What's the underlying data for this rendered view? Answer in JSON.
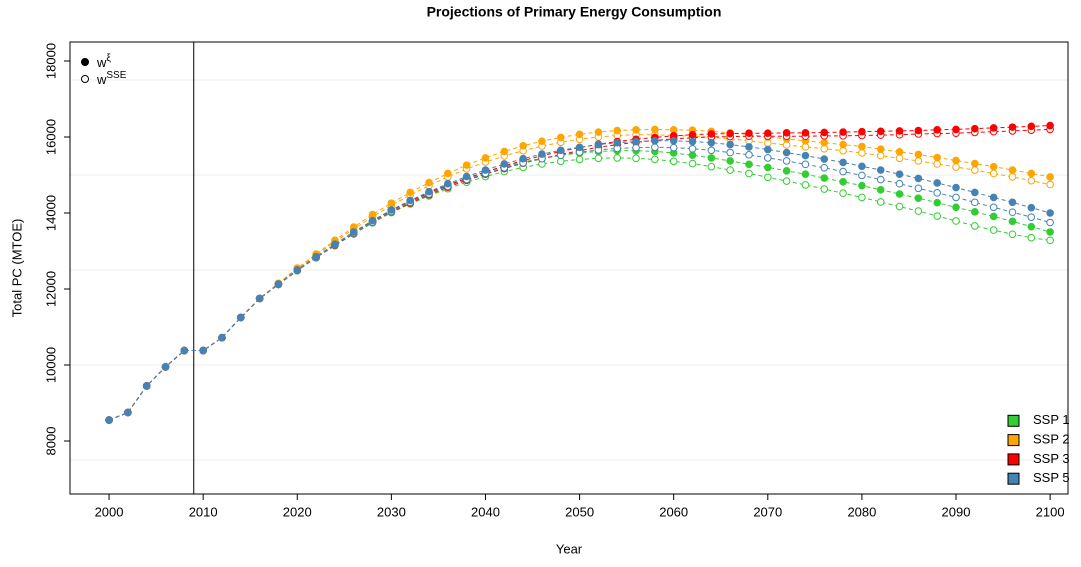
{
  "chart_data": {
    "type": "line",
    "title": "Projections of Primary Energy Consumption",
    "xlabel": "Year",
    "ylabel": "Total PC (MTOE)",
    "x": [
      2000,
      2002,
      2004,
      2006,
      2008,
      2010,
      2012,
      2014,
      2016,
      2018,
      2020,
      2022,
      2024,
      2026,
      2028,
      2030,
      2032,
      2034,
      2036,
      2038,
      2040,
      2042,
      2044,
      2046,
      2048,
      2050,
      2052,
      2054,
      2056,
      2058,
      2060,
      2062,
      2064,
      2066,
      2068,
      2070,
      2072,
      2074,
      2076,
      2078,
      2080,
      2082,
      2084,
      2086,
      2088,
      2090,
      2092,
      2094,
      2096,
      2098,
      2100
    ],
    "xlim": [
      1995.85,
      2101.9
    ],
    "xticks": [
      2000,
      2010,
      2020,
      2030,
      2040,
      2050,
      2060,
      2070,
      2080,
      2090,
      2100
    ],
    "ylim": [
      6605,
      18500
    ],
    "yticks": [
      8000,
      10000,
      12000,
      14000,
      16000,
      18000
    ],
    "ygrid": [
      7500,
      10000,
      12500,
      15000,
      17500
    ],
    "vline": 2009,
    "marker_legend": [
      {
        "label": "w",
        "sup": "ξ",
        "filled": true
      },
      {
        "label": "w",
        "sup": "SSE",
        "filled": false
      }
    ],
    "legend": "bottom-right",
    "series": [
      {
        "name": "SSP 1",
        "color": "#32cd32",
        "values": [
          8550,
          8750,
          9450,
          9950,
          10380,
          10380,
          10720,
          11250,
          11750,
          12130,
          12500,
          12850,
          13180,
          13500,
          13800,
          14080,
          14320,
          14540,
          14740,
          14920,
          15080,
          15220,
          15340,
          15440,
          15520,
          15580,
          15620,
          15640,
          15640,
          15620,
          15580,
          15520,
          15450,
          15370,
          15280,
          15200,
          15110,
          15020,
          14920,
          14820,
          14720,
          14610,
          14500,
          14390,
          14270,
          14150,
          14030,
          13910,
          13780,
          13640,
          13500
        ],
        "values_open": [
          8550,
          8750,
          9450,
          9950,
          10380,
          10380,
          10720,
          11250,
          11750,
          12120,
          12480,
          12820,
          13140,
          13450,
          13740,
          14010,
          14240,
          14450,
          14640,
          14810,
          14960,
          15090,
          15200,
          15290,
          15360,
          15410,
          15440,
          15450,
          15440,
          15410,
          15360,
          15300,
          15220,
          15130,
          15040,
          14940,
          14840,
          14740,
          14630,
          14520,
          14410,
          14290,
          14170,
          14050,
          13920,
          13790,
          13660,
          13550,
          13440,
          13350,
          13280
        ]
      },
      {
        "name": "SSP 2",
        "color": "#ffa500",
        "values": [
          8550,
          8750,
          9450,
          9950,
          10380,
          10380,
          10720,
          11250,
          11750,
          12150,
          12550,
          12920,
          13280,
          13630,
          13960,
          14260,
          14540,
          14800,
          15040,
          15260,
          15450,
          15620,
          15770,
          15890,
          15990,
          16070,
          16130,
          16170,
          16190,
          16200,
          16190,
          16180,
          16150,
          16110,
          16060,
          16000,
          15950,
          15900,
          15850,
          15800,
          15750,
          15680,
          15610,
          15540,
          15460,
          15380,
          15300,
          15220,
          15130,
          15040,
          14950
        ],
        "values_open": [
          8550,
          8750,
          9450,
          9950,
          10380,
          10380,
          10720,
          11250,
          11750,
          12140,
          12530,
          12890,
          13240,
          13580,
          13900,
          14200,
          14470,
          14720,
          14950,
          15160,
          15340,
          15500,
          15640,
          15760,
          15860,
          15940,
          16000,
          16040,
          16060,
          16060,
          16040,
          16020,
          15990,
          15950,
          15900,
          15840,
          15790,
          15740,
          15690,
          15640,
          15580,
          15510,
          15440,
          15370,
          15290,
          15210,
          15130,
          15040,
          14950,
          14850,
          14750
        ]
      },
      {
        "name": "SSP 3",
        "color": "#ff0000",
        "values": [
          8550,
          8750,
          9450,
          9950,
          10380,
          10380,
          10720,
          11250,
          11750,
          12130,
          12500,
          12840,
          13170,
          13490,
          13790,
          14070,
          14310,
          14530,
          14730,
          14910,
          15080,
          15240,
          15380,
          15510,
          15620,
          15720,
          15810,
          15880,
          15940,
          15990,
          16030,
          16060,
          16080,
          16090,
          16100,
          16100,
          16110,
          16110,
          16120,
          16130,
          16140,
          16150,
          16160,
          16170,
          16190,
          16200,
          16220,
          16240,
          16260,
          16280,
          16300
        ],
        "values_open": [
          8550,
          8750,
          9450,
          9950,
          10380,
          10380,
          10720,
          11250,
          11750,
          12120,
          12490,
          12830,
          13150,
          13460,
          13760,
          14030,
          14260,
          14480,
          14680,
          14860,
          15020,
          15170,
          15310,
          15430,
          15540,
          15640,
          15730,
          15800,
          15860,
          15910,
          15950,
          15980,
          16000,
          16010,
          16020,
          16020,
          16020,
          16020,
          16030,
          16030,
          16040,
          16050,
          16060,
          16080,
          16090,
          16100,
          16120,
          16140,
          16160,
          16180,
          16200
        ]
      },
      {
        "name": "SSP 5",
        "color": "#4682b4",
        "values": [
          8550,
          8750,
          9450,
          9950,
          10380,
          10380,
          10720,
          11250,
          11750,
          12130,
          12500,
          12850,
          13180,
          13500,
          13800,
          14080,
          14330,
          14560,
          14770,
          14960,
          15130,
          15290,
          15430,
          15550,
          15650,
          15730,
          15800,
          15850,
          15880,
          15900,
          15900,
          15880,
          15850,
          15800,
          15740,
          15670,
          15590,
          15510,
          15420,
          15330,
          15230,
          15130,
          15020,
          14910,
          14790,
          14670,
          14540,
          14410,
          14280,
          14140,
          14000
        ],
        "values_open": [
          8550,
          8750,
          9450,
          9950,
          10380,
          10380,
          10720,
          11250,
          11750,
          12120,
          12490,
          12830,
          13160,
          13470,
          13760,
          14040,
          14280,
          14500,
          14700,
          14880,
          15040,
          15190,
          15320,
          15430,
          15520,
          15600,
          15660,
          15700,
          15720,
          15730,
          15720,
          15690,
          15650,
          15590,
          15530,
          15450,
          15370,
          15280,
          15190,
          15090,
          14990,
          14880,
          14770,
          14650,
          14530,
          14410,
          14280,
          14150,
          14020,
          13890,
          13750
        ]
      }
    ]
  }
}
